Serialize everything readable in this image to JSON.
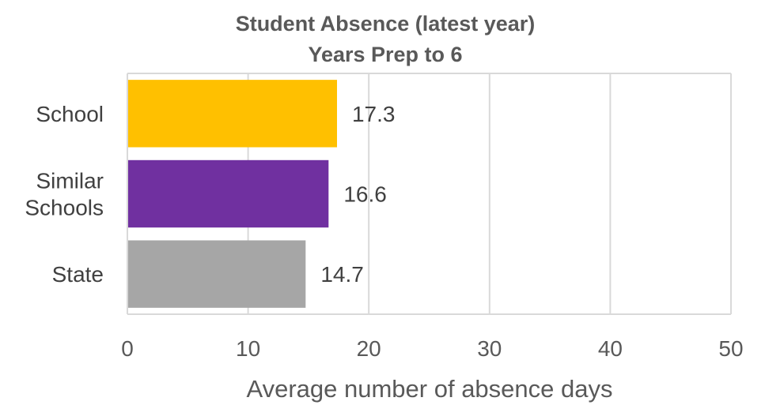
{
  "chart_data": {
    "type": "bar",
    "orientation": "horizontal",
    "title": "Student Absence (latest year)",
    "subtitle": "Years Prep to 6",
    "categories": [
      "School",
      "Similar Schools",
      "State"
    ],
    "category_lines": [
      [
        "School"
      ],
      [
        "Similar",
        "Schools"
      ],
      [
        "State"
      ]
    ],
    "values": [
      17.3,
      16.6,
      14.7
    ],
    "value_labels": [
      "17.3",
      "16.6",
      "14.7"
    ],
    "colors": [
      "#FFC000",
      "#7030A0",
      "#A6A6A6"
    ],
    "xlabel": "Average number of absence days",
    "ylabel": "",
    "xlim": [
      0,
      50
    ],
    "xticks": [
      0,
      10,
      20,
      30,
      40,
      50
    ],
    "xtick_labels": [
      "0",
      "10",
      "20",
      "30",
      "40",
      "50"
    ],
    "grid": true,
    "legend": "none"
  }
}
